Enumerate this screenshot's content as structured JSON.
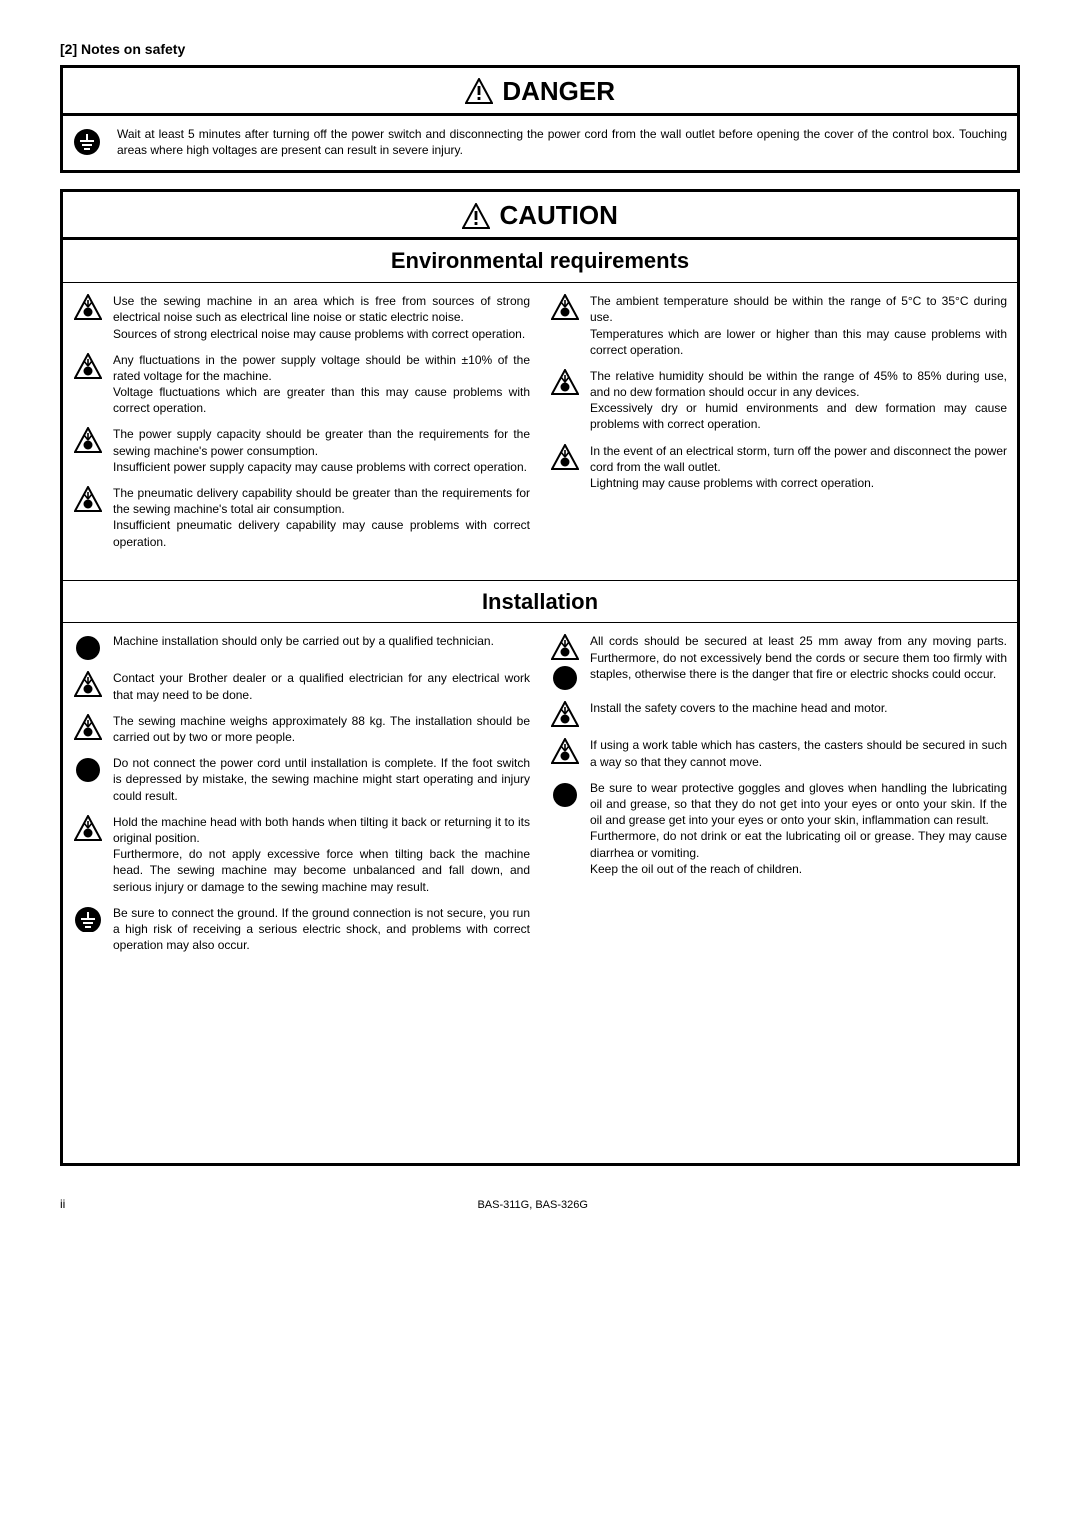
{
  "page": {
    "section_label": "[2] Notes on safety",
    "footer_page": "ii",
    "footer_model": "BAS-311G, BAS-326G"
  },
  "danger": {
    "title": "DANGER",
    "text": "Wait at least 5 minutes after turning off the power switch and disconnecting the power cord from the wall outlet before opening the cover of the control box. Touching areas where high voltages are present can result in severe injury."
  },
  "caution": {
    "title": "CAUTION",
    "env": {
      "title": "Environmental requirements",
      "left": [
        "Use the sewing machine in an area which is free from sources of strong electrical noise such as electrical line noise or static electric noise.\nSources of strong electrical noise may cause problems with correct operation.",
        "Any fluctuations in the power supply voltage should be within ±10% of the rated voltage for the machine.\nVoltage fluctuations which are greater than this may cause problems with correct operation.",
        "The power supply capacity should be greater than the requirements for the sewing machine's power consumption.\nInsufficient power supply capacity may cause problems with correct operation.",
        "The pneumatic delivery capability should be greater than the requirements for the sewing machine's total air consumption.\nInsufficient pneumatic delivery capability may cause problems with correct operation."
      ],
      "right": [
        "The ambient temperature should be within the range of 5°C to 35°C during use.\nTemperatures which are lower or higher than this may cause problems with correct operation.",
        "The relative humidity should be within the range of 45% to 85% during use, and no dew formation should occur in any devices.\nExcessively dry or humid environments and dew formation may cause problems with correct operation.",
        "In the event of an electrical storm, turn off the power and disconnect the power cord from the wall outlet.\nLightning may cause problems with correct operation."
      ]
    },
    "install": {
      "title": "Installation",
      "left": [
        {
          "icons": [
            "circle"
          ],
          "text": "Machine installation should only be carried out by a qualified technician."
        },
        {
          "icons": [
            "hazard"
          ],
          "text": "Contact your Brother dealer or a qualified electrician for any electrical work that may need to be done."
        },
        {
          "icons": [
            "hazard"
          ],
          "text": "The sewing machine weighs approximately 88 kg. The installation should be carried out by two or more people."
        },
        {
          "icons": [
            "circle"
          ],
          "text": "Do not connect the power cord until installation is complete. If the foot switch is depressed by mistake, the sewing machine might start operating and injury could result."
        },
        {
          "icons": [
            "hazard"
          ],
          "text": "Hold the machine head with both hands when tilting it back or returning it to its original position.\nFurthermore, do not apply excessive force when tilting back the machine head. The sewing machine may become unbalanced and fall down, and serious injury or damage to the sewing machine may result."
        },
        {
          "icons": [
            "ground"
          ],
          "text": "Be sure to connect the ground. If the ground connection is not secure, you run a high risk of receiving a serious electric shock, and problems with correct operation may also occur."
        }
      ],
      "right": [
        {
          "icons": [
            "hazard",
            "circle"
          ],
          "text": "All cords should be secured at least 25 mm away from any moving parts. Furthermore, do not excessively bend the cords or secure them too firmly with staples, otherwise there is the danger that fire or electric shocks could occur."
        },
        {
          "icons": [
            "hazard"
          ],
          "text": "Install the safety covers to the machine head and motor."
        },
        {
          "icons": [
            "hazard"
          ],
          "text": "If using a work table which has casters, the casters should be secured in such a way so that they cannot move."
        },
        {
          "icons": [
            "circle"
          ],
          "text": "Be sure to wear protective goggles and gloves when handling the lubricating oil and grease, so that they do not get into your eyes or onto your skin. If the oil and grease get into your eyes or onto your skin, inflammation can result.\nFurthermore, do not drink or eat the lubricating oil or grease. They may cause diarrhea or vomiting.\nKeep the oil out of the reach of children."
        }
      ]
    }
  }
}
